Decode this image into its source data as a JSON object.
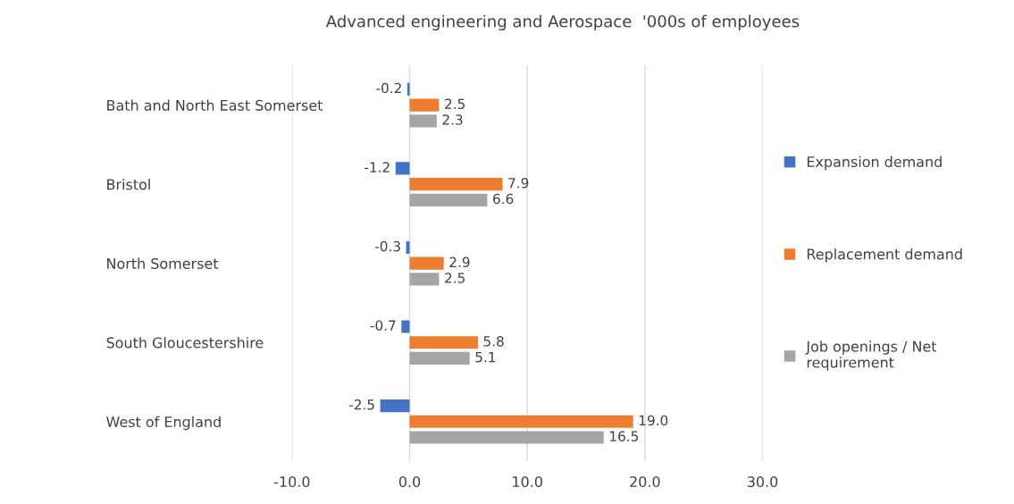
{
  "chart_data": {
    "type": "bar",
    "orientation": "horizontal",
    "title": "Advanced engineering and Aerospace  '000s of employees",
    "categories": [
      "Bath and North East Somerset",
      "Bristol",
      "North Somerset",
      "South Gloucestershire",
      "West of England"
    ],
    "series": [
      {
        "name": "Expansion demand",
        "color": "#4472c4",
        "values": [
          -0.2,
          -1.2,
          -0.3,
          -0.7,
          -2.5
        ],
        "value_labels": [
          "-0.2",
          "-1.2",
          "-0.3",
          "-0.7",
          "-2.5"
        ]
      },
      {
        "name": "Replacement demand",
        "color": "#ed7d31",
        "values": [
          2.5,
          7.9,
          2.9,
          5.8,
          19.0
        ],
        "value_labels": [
          "2.5",
          "7.9",
          "2.9",
          "5.8",
          "19.0"
        ]
      },
      {
        "name": "Job openings / Net\nrequirement",
        "color": "#a5a5a5",
        "values": [
          2.3,
          6.6,
          2.5,
          5.1,
          16.5
        ],
        "value_labels": [
          "2.3",
          "6.6",
          "2.5",
          "5.1",
          "16.5"
        ]
      }
    ],
    "xlim": [
      -10,
      30
    ],
    "xticks": [
      {
        "value": -10,
        "label": "-10.0"
      },
      {
        "value": 0,
        "label": "0.0"
      },
      {
        "value": 10,
        "label": "10.0"
      },
      {
        "value": 20,
        "label": "20.0"
      },
      {
        "value": 30,
        "label": "30.0"
      }
    ],
    "grid": "x",
    "legend": "right"
  }
}
